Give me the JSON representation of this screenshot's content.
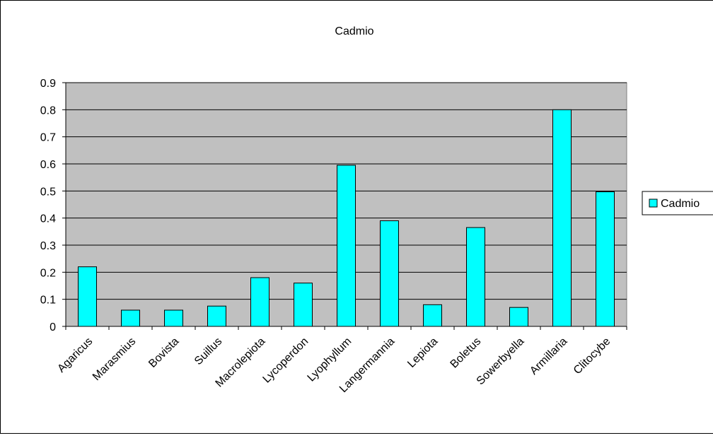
{
  "chart_data": {
    "type": "bar",
    "title": "Cadmio",
    "xlabel": "",
    "ylabel": "",
    "categories": [
      "Agaricus",
      "Marasmius",
      "Bovista",
      "Suillus",
      "Macrolepiota",
      "Lycoperdon",
      "Lyophyllum",
      "Langermannia",
      "Lepiota",
      "Boletus",
      "Sowerbyella",
      "Armillaria",
      "Clitocybe"
    ],
    "series": [
      {
        "name": "Cadmio",
        "values": [
          0.22,
          0.06,
          0.06,
          0.075,
          0.18,
          0.16,
          0.595,
          0.39,
          0.08,
          0.365,
          0.07,
          0.8,
          0.497
        ]
      }
    ],
    "ylim": [
      0,
      0.9
    ],
    "yticks": [
      "0",
      "0.1",
      "0.2",
      "0.3",
      "0.4",
      "0.5",
      "0.6",
      "0.7",
      "0.8",
      "0.9"
    ],
    "grid": true,
    "legend_position": "right",
    "colors": {
      "bar": "#00ffff",
      "plot_background": "#c0c0c0",
      "gridline": "#000000"
    }
  }
}
